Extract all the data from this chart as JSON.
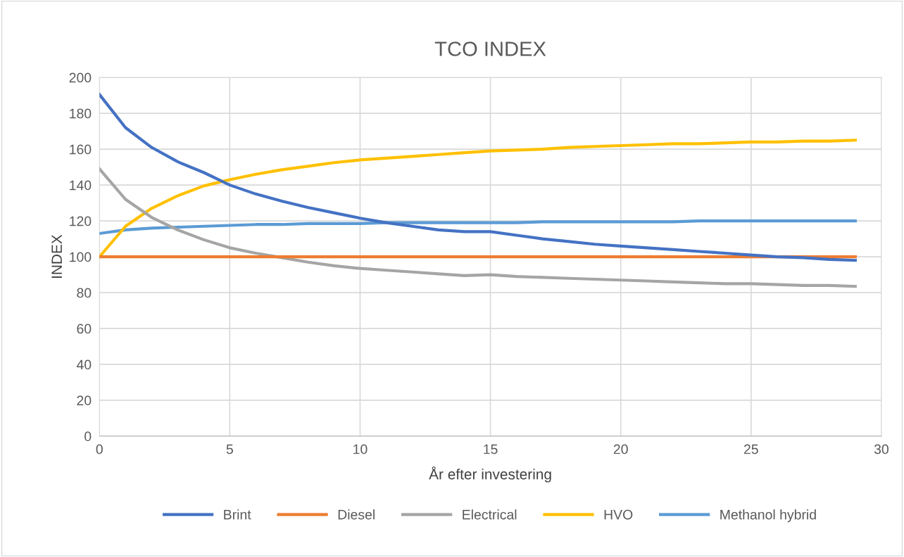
{
  "chart_data": {
    "type": "line",
    "title": "TCO INDEX",
    "xlabel": "År efter investering",
    "ylabel": "INDEX",
    "x": [
      0,
      1,
      2,
      3,
      4,
      5,
      6,
      7,
      8,
      9,
      10,
      11,
      12,
      13,
      14,
      15,
      16,
      17,
      18,
      19,
      20,
      21,
      22,
      23,
      24,
      25,
      26,
      27,
      28,
      29
    ],
    "series": [
      {
        "name": "Brint",
        "color": "#4472c4",
        "values": [
          190.5,
          172,
          161,
          153,
          147,
          140,
          135,
          131,
          127.5,
          124.5,
          121.5,
          119,
          117,
          115,
          114,
          114,
          112,
          110,
          108.5,
          107,
          106,
          105,
          104,
          103,
          102,
          101,
          100,
          99.5,
          98.5,
          98
        ]
      },
      {
        "name": "Diesel",
        "color": "#ed7d31",
        "values": [
          100,
          100,
          100,
          100,
          100,
          100,
          100,
          100,
          100,
          100,
          100,
          100,
          100,
          100,
          100,
          100,
          100,
          100,
          100,
          100,
          100,
          100,
          100,
          100,
          100,
          100,
          100,
          100,
          100,
          100
        ]
      },
      {
        "name": "Electrical",
        "color": "#a5a5a5",
        "values": [
          149,
          132,
          122,
          115,
          109.5,
          105,
          102,
          99.5,
          97,
          95,
          93.5,
          92.5,
          91.5,
          90.5,
          89.5,
          90,
          89,
          88.5,
          88,
          87.5,
          87,
          86.5,
          86,
          85.5,
          85,
          85,
          84.5,
          84,
          84,
          83.5
        ]
      },
      {
        "name": "HVO",
        "color": "#ffc000",
        "values": [
          100,
          117,
          127,
          134,
          139.5,
          143,
          146,
          148.5,
          150.5,
          152.5,
          154,
          155,
          156,
          157,
          158,
          159,
          159.5,
          160,
          161,
          161.5,
          162,
          162.5,
          163,
          163,
          163.5,
          164,
          164,
          164.5,
          164.5,
          165
        ]
      },
      {
        "name": "Methanol hybrid",
        "color": "#5b9bd5",
        "values": [
          113,
          115,
          116,
          116.5,
          117,
          117.5,
          118,
          118,
          118.5,
          118.5,
          118.5,
          119,
          119,
          119,
          119,
          119,
          119,
          119.5,
          119.5,
          119.5,
          119.5,
          119.5,
          119.5,
          120,
          120,
          120,
          120,
          120,
          120,
          120
        ]
      }
    ],
    "xlim": [
      0,
      30
    ],
    "xticks": [
      0,
      5,
      10,
      15,
      20,
      25,
      30
    ],
    "ylim": [
      0,
      200
    ],
    "yticks": [
      0,
      20,
      40,
      60,
      80,
      100,
      120,
      140,
      160,
      180,
      200
    ],
    "grid": true,
    "legend": "bottom",
    "marker": "none",
    "line_style": "solid"
  }
}
